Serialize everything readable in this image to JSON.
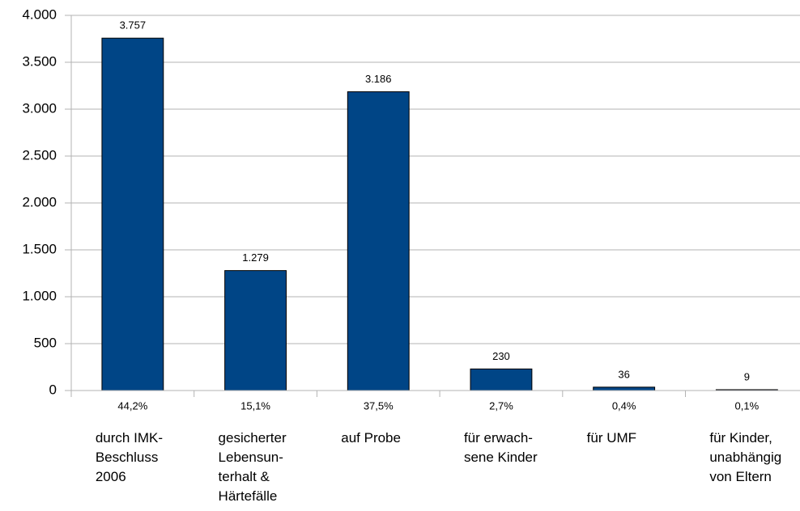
{
  "chart_data": {
    "type": "bar",
    "categories": [
      "durch IMK-\nBeschluss\n2006",
      "gesicherter\nLebensun-\nterhalt &\nHärtefälle",
      "auf Probe",
      "für erwach-\nsene Kinder",
      "für UMF",
      "für Kinder,\nunabhängig\nvon Eltern"
    ],
    "values": [
      3757,
      1279,
      3186,
      230,
      36,
      9
    ],
    "value_labels": [
      "3.757",
      "1.279",
      "3.186",
      "230",
      "36",
      "9"
    ],
    "percent_labels": [
      "44,2%",
      "15,1%",
      "37,5%",
      "2,7%",
      "0,4%",
      "0,1%"
    ],
    "color": "#004586",
    "ylim": [
      0,
      4000
    ],
    "yticks": [
      0,
      500,
      {
        "value": 1000,
        "label": "1.000"
      },
      {
        "value": 1500,
        "label": "1.500"
      },
      {
        "value": 2000,
        "label": "2.000"
      },
      {
        "value": 2500,
        "label": "2.500"
      },
      {
        "value": 3000,
        "label": "3.000"
      },
      {
        "value": 3500,
        "label": "3.500"
      },
      {
        "value": 4000,
        "label": "4.000"
      }
    ],
    "grid": true
  }
}
